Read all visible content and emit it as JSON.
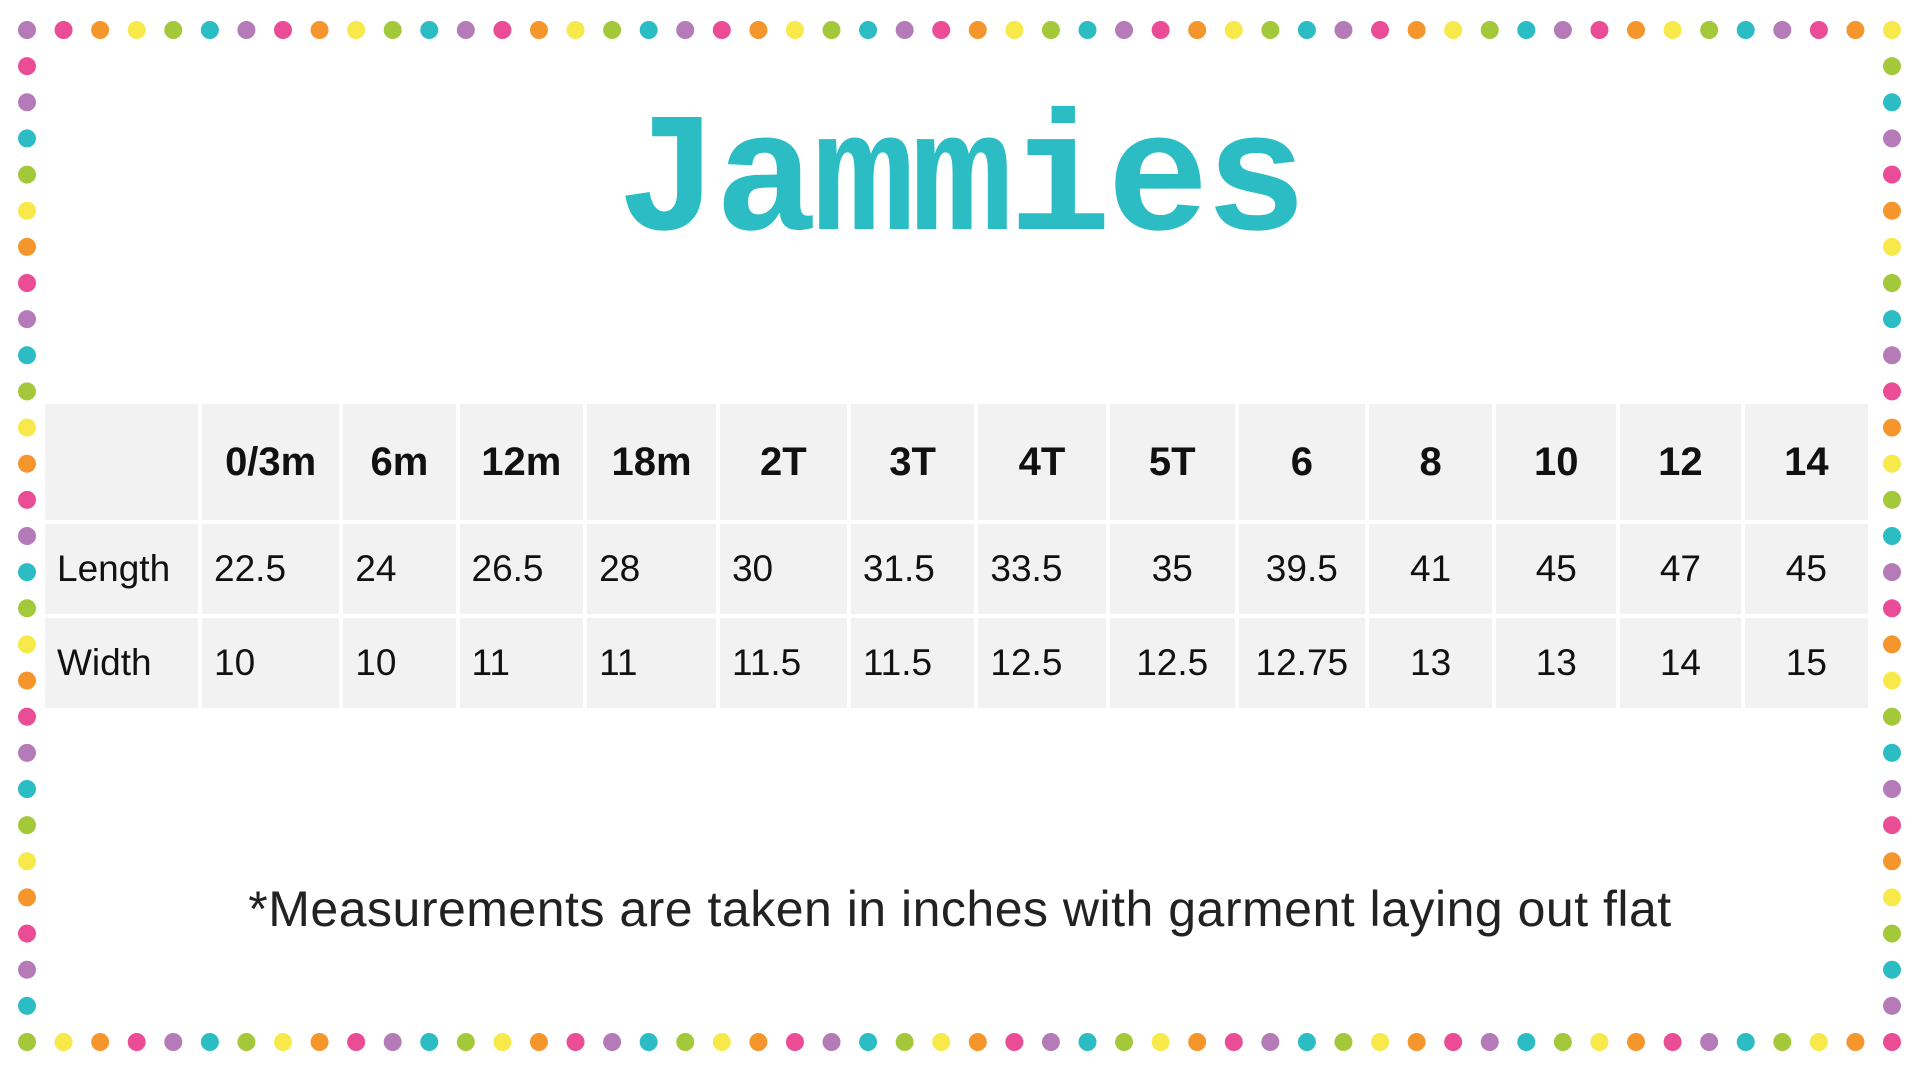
{
  "title": "Jammies",
  "dot_colors": [
    "#b57bb8",
    "#ea4c96",
    "#f5962d",
    "#f7e94a",
    "#a3c93a",
    "#2bbdc3"
  ],
  "title_color": "#2bbdc3",
  "table": {
    "sizes": [
      "0/3m",
      "6m",
      "12m",
      "18m",
      "2T",
      "3T",
      "4T",
      "5T",
      "6",
      "8",
      "10",
      "12",
      "14"
    ],
    "rows": [
      {
        "label": "Length",
        "values": [
          "22.5",
          "24",
          "26.5",
          "28",
          "30",
          "31.5",
          "33.5",
          "35",
          "39.5",
          "41",
          "45",
          "47",
          "45"
        ]
      },
      {
        "label": "Width",
        "values": [
          "10",
          "10",
          "11",
          "11",
          "11.5",
          "11.5",
          "12.5",
          "12.5",
          "12.75",
          "13",
          "13",
          "14",
          "15"
        ]
      }
    ]
  },
  "footnote": "*Measurements are taken in inches with garment laying out flat"
}
